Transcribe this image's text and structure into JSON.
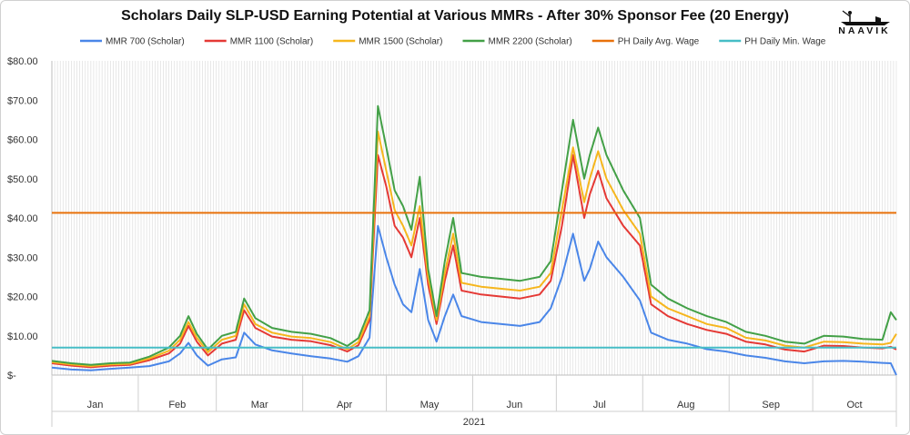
{
  "chart_data": {
    "type": "line",
    "title": "Scholars Daily SLP-USD Earning Potential at Various MMRs - After 30% Sponsor Fee (20 Energy)",
    "xlabel": "2021",
    "ylabel": "",
    "ylim": [
      0,
      80
    ],
    "y_ticks": [
      {
        "value": 0,
        "label": "$-"
      },
      {
        "value": 10,
        "label": "$10.00"
      },
      {
        "value": 20,
        "label": "$20.00"
      },
      {
        "value": 30,
        "label": "$30.00"
      },
      {
        "value": 40,
        "label": "$40.00"
      },
      {
        "value": 50,
        "label": "$50.00"
      },
      {
        "value": 60,
        "label": "$60.00"
      },
      {
        "value": 70,
        "label": "$70.00"
      },
      {
        "value": 80,
        "label": "$80.00"
      }
    ],
    "months": [
      {
        "label": "Jan",
        "start": "2021-01-01",
        "end": "2021-01-31"
      },
      {
        "label": "Feb",
        "start": "2021-02-01",
        "end": "2021-02-28"
      },
      {
        "label": "Mar",
        "start": "2021-03-01",
        "end": "2021-03-31"
      },
      {
        "label": "Apr",
        "start": "2021-04-01",
        "end": "2021-04-30"
      },
      {
        "label": "May",
        "start": "2021-05-01",
        "end": "2021-05-31"
      },
      {
        "label": "Jun",
        "start": "2021-06-01",
        "end": "2021-06-30"
      },
      {
        "label": "Jul",
        "start": "2021-07-01",
        "end": "2021-07-31"
      },
      {
        "label": "Aug",
        "start": "2021-08-01",
        "end": "2021-08-31"
      },
      {
        "label": "Sep",
        "start": "2021-09-01",
        "end": "2021-09-30"
      },
      {
        "label": "Oct",
        "start": "2021-10-01",
        "end": "2021-10-31"
      }
    ],
    "x_range": [
      "2021-01-01",
      "2021-10-31"
    ],
    "grid": "vertical dense lines",
    "legend_placement": "top",
    "series": [
      {
        "name": "MMR 700 (Scholar)",
        "color": "#4a86e8",
        "points": [
          [
            "2021-01-01",
            1.9
          ],
          [
            "2021-01-08",
            1.4
          ],
          [
            "2021-01-15",
            1.2
          ],
          [
            "2021-01-22",
            1.6
          ],
          [
            "2021-01-29",
            1.9
          ],
          [
            "2021-02-05",
            2.3
          ],
          [
            "2021-02-12",
            3.5
          ],
          [
            "2021-02-16",
            5.5
          ],
          [
            "2021-02-19",
            8.2
          ],
          [
            "2021-02-22",
            5.0
          ],
          [
            "2021-02-26",
            2.4
          ],
          [
            "2021-03-03",
            4.0
          ],
          [
            "2021-03-08",
            4.5
          ],
          [
            "2021-03-11",
            10.8
          ],
          [
            "2021-03-15",
            7.8
          ],
          [
            "2021-03-21",
            6.3
          ],
          [
            "2021-03-28",
            5.5
          ],
          [
            "2021-04-04",
            4.8
          ],
          [
            "2021-04-11",
            4.2
          ],
          [
            "2021-04-17",
            3.4
          ],
          [
            "2021-04-21",
            4.8
          ],
          [
            "2021-04-25",
            9.5
          ],
          [
            "2021-04-28",
            38.0
          ],
          [
            "2021-05-01",
            30.0
          ],
          [
            "2021-05-04",
            23.0
          ],
          [
            "2021-05-07",
            18.0
          ],
          [
            "2021-05-10",
            16.0
          ],
          [
            "2021-05-13",
            27.0
          ],
          [
            "2021-05-16",
            14.0
          ],
          [
            "2021-05-19",
            8.5
          ],
          [
            "2021-05-22",
            15.0
          ],
          [
            "2021-05-25",
            20.5
          ],
          [
            "2021-05-28",
            15.0
          ],
          [
            "2021-06-04",
            13.5
          ],
          [
            "2021-06-11",
            13.0
          ],
          [
            "2021-06-18",
            12.5
          ],
          [
            "2021-06-25",
            13.5
          ],
          [
            "2021-06-29",
            17.0
          ],
          [
            "2021-07-03",
            25.0
          ],
          [
            "2021-07-07",
            36.0
          ],
          [
            "2021-07-11",
            24.0
          ],
          [
            "2021-07-13",
            27.0
          ],
          [
            "2021-07-16",
            34.0
          ],
          [
            "2021-07-19",
            30.0
          ],
          [
            "2021-07-25",
            25.0
          ],
          [
            "2021-07-31",
            19.0
          ],
          [
            "2021-08-04",
            10.8
          ],
          [
            "2021-08-10",
            9.0
          ],
          [
            "2021-08-17",
            8.0
          ],
          [
            "2021-08-24",
            6.6
          ],
          [
            "2021-08-31",
            6.0
          ],
          [
            "2021-09-07",
            5.0
          ],
          [
            "2021-09-14",
            4.4
          ],
          [
            "2021-09-21",
            3.5
          ],
          [
            "2021-09-28",
            3.0
          ],
          [
            "2021-10-05",
            3.5
          ],
          [
            "2021-10-12",
            3.6
          ],
          [
            "2021-10-19",
            3.4
          ],
          [
            "2021-10-26",
            3.1
          ],
          [
            "2021-10-29",
            3.0
          ],
          [
            "2021-10-31",
            0.0
          ]
        ]
      },
      {
        "name": "MMR 1100 (Scholar)",
        "color": "#e53935",
        "points": [
          [
            "2021-01-01",
            3.0
          ],
          [
            "2021-01-08",
            2.4
          ],
          [
            "2021-01-15",
            2.0
          ],
          [
            "2021-01-22",
            2.4
          ],
          [
            "2021-01-29",
            2.6
          ],
          [
            "2021-02-05",
            3.8
          ],
          [
            "2021-02-12",
            5.5
          ],
          [
            "2021-02-16",
            8.0
          ],
          [
            "2021-02-19",
            12.5
          ],
          [
            "2021-02-22",
            8.5
          ],
          [
            "2021-02-26",
            5.0
          ],
          [
            "2021-03-03",
            8.0
          ],
          [
            "2021-03-08",
            9.0
          ],
          [
            "2021-03-11",
            16.5
          ],
          [
            "2021-03-15",
            12.0
          ],
          [
            "2021-03-21",
            9.8
          ],
          [
            "2021-03-28",
            9.0
          ],
          [
            "2021-04-04",
            8.6
          ],
          [
            "2021-04-11",
            7.6
          ],
          [
            "2021-04-17",
            6.0
          ],
          [
            "2021-04-21",
            7.6
          ],
          [
            "2021-04-25",
            14.0
          ],
          [
            "2021-04-28",
            56.0
          ],
          [
            "2021-05-01",
            48.0
          ],
          [
            "2021-05-04",
            38.0
          ],
          [
            "2021-05-07",
            35.0
          ],
          [
            "2021-05-10",
            30.0
          ],
          [
            "2021-05-13",
            40.0
          ],
          [
            "2021-05-16",
            23.0
          ],
          [
            "2021-05-19",
            13.0
          ],
          [
            "2021-05-22",
            24.0
          ],
          [
            "2021-05-25",
            33.0
          ],
          [
            "2021-05-28",
            21.5
          ],
          [
            "2021-06-04",
            20.5
          ],
          [
            "2021-06-11",
            20.0
          ],
          [
            "2021-06-18",
            19.5
          ],
          [
            "2021-06-25",
            20.5
          ],
          [
            "2021-06-29",
            24.0
          ],
          [
            "2021-07-03",
            38.0
          ],
          [
            "2021-07-07",
            56.0
          ],
          [
            "2021-07-11",
            40.0
          ],
          [
            "2021-07-13",
            46.0
          ],
          [
            "2021-07-16",
            52.0
          ],
          [
            "2021-07-19",
            45.0
          ],
          [
            "2021-07-25",
            38.0
          ],
          [
            "2021-07-31",
            33.0
          ],
          [
            "2021-08-04",
            18.0
          ],
          [
            "2021-08-10",
            15.0
          ],
          [
            "2021-08-17",
            13.0
          ],
          [
            "2021-08-24",
            11.5
          ],
          [
            "2021-08-31",
            10.5
          ],
          [
            "2021-09-07",
            8.5
          ],
          [
            "2021-09-14",
            7.8
          ],
          [
            "2021-09-21",
            6.5
          ],
          [
            "2021-09-28",
            6.0
          ],
          [
            "2021-10-05",
            7.5
          ],
          [
            "2021-10-12",
            7.4
          ],
          [
            "2021-10-19",
            7.0
          ],
          [
            "2021-10-26",
            6.8
          ],
          [
            "2021-10-29",
            7.2
          ],
          [
            "2021-10-31",
            6.5
          ]
        ]
      },
      {
        "name": "MMR 1500 (Scholar)",
        "color": "#f6b61d",
        "points": [
          [
            "2021-01-01",
            3.3
          ],
          [
            "2021-01-08",
            2.7
          ],
          [
            "2021-01-15",
            2.3
          ],
          [
            "2021-01-22",
            2.7
          ],
          [
            "2021-01-29",
            2.9
          ],
          [
            "2021-02-05",
            4.2
          ],
          [
            "2021-02-12",
            6.2
          ],
          [
            "2021-02-16",
            9.0
          ],
          [
            "2021-02-19",
            13.5
          ],
          [
            "2021-02-22",
            9.5
          ],
          [
            "2021-02-26",
            5.8
          ],
          [
            "2021-03-03",
            9.0
          ],
          [
            "2021-03-08",
            10.0
          ],
          [
            "2021-03-11",
            18.0
          ],
          [
            "2021-03-15",
            13.0
          ],
          [
            "2021-03-21",
            10.8
          ],
          [
            "2021-03-28",
            9.8
          ],
          [
            "2021-04-04",
            9.4
          ],
          [
            "2021-04-11",
            8.4
          ],
          [
            "2021-04-17",
            6.6
          ],
          [
            "2021-04-21",
            8.4
          ],
          [
            "2021-04-25",
            15.0
          ],
          [
            "2021-04-28",
            62.0
          ],
          [
            "2021-05-01",
            52.0
          ],
          [
            "2021-05-04",
            42.0
          ],
          [
            "2021-05-07",
            38.0
          ],
          [
            "2021-05-10",
            33.0
          ],
          [
            "2021-05-13",
            43.0
          ],
          [
            "2021-05-16",
            25.0
          ],
          [
            "2021-05-19",
            14.0
          ],
          [
            "2021-05-22",
            26.0
          ],
          [
            "2021-05-25",
            36.0
          ],
          [
            "2021-05-28",
            23.5
          ],
          [
            "2021-06-04",
            22.5
          ],
          [
            "2021-06-11",
            22.0
          ],
          [
            "2021-06-18",
            21.5
          ],
          [
            "2021-06-25",
            22.5
          ],
          [
            "2021-06-29",
            26.0
          ],
          [
            "2021-07-03",
            42.0
          ],
          [
            "2021-07-07",
            58.0
          ],
          [
            "2021-07-11",
            44.0
          ],
          [
            "2021-07-13",
            50.0
          ],
          [
            "2021-07-16",
            57.0
          ],
          [
            "2021-07-19",
            50.0
          ],
          [
            "2021-07-25",
            42.0
          ],
          [
            "2021-07-31",
            36.0
          ],
          [
            "2021-08-04",
            20.0
          ],
          [
            "2021-08-10",
            17.0
          ],
          [
            "2021-08-17",
            15.0
          ],
          [
            "2021-08-24",
            13.0
          ],
          [
            "2021-08-31",
            12.0
          ],
          [
            "2021-09-07",
            9.5
          ],
          [
            "2021-09-14",
            8.8
          ],
          [
            "2021-09-21",
            7.5
          ],
          [
            "2021-09-28",
            7.0
          ],
          [
            "2021-10-05",
            8.5
          ],
          [
            "2021-10-12",
            8.4
          ],
          [
            "2021-10-19",
            8.0
          ],
          [
            "2021-10-26",
            7.8
          ],
          [
            "2021-10-29",
            8.2
          ],
          [
            "2021-10-31",
            10.5
          ]
        ]
      },
      {
        "name": "MMR 2200 (Scholar)",
        "color": "#43a047",
        "points": [
          [
            "2021-01-01",
            3.6
          ],
          [
            "2021-01-08",
            3.0
          ],
          [
            "2021-01-15",
            2.6
          ],
          [
            "2021-01-22",
            3.0
          ],
          [
            "2021-01-29",
            3.2
          ],
          [
            "2021-02-05",
            4.7
          ],
          [
            "2021-02-12",
            7.0
          ],
          [
            "2021-02-16",
            10.0
          ],
          [
            "2021-02-19",
            15.0
          ],
          [
            "2021-02-22",
            10.5
          ],
          [
            "2021-02-26",
            6.5
          ],
          [
            "2021-03-03",
            10.0
          ],
          [
            "2021-03-08",
            11.0
          ],
          [
            "2021-03-11",
            19.5
          ],
          [
            "2021-03-15",
            14.5
          ],
          [
            "2021-03-21",
            12.0
          ],
          [
            "2021-03-28",
            11.0
          ],
          [
            "2021-04-04",
            10.5
          ],
          [
            "2021-04-11",
            9.4
          ],
          [
            "2021-04-17",
            7.4
          ],
          [
            "2021-04-21",
            9.4
          ],
          [
            "2021-04-25",
            16.5
          ],
          [
            "2021-04-28",
            68.5
          ],
          [
            "2021-05-01",
            58.0
          ],
          [
            "2021-05-04",
            47.0
          ],
          [
            "2021-05-07",
            43.0
          ],
          [
            "2021-05-10",
            37.0
          ],
          [
            "2021-05-13",
            50.5
          ],
          [
            "2021-05-16",
            27.0
          ],
          [
            "2021-05-19",
            15.0
          ],
          [
            "2021-05-22",
            29.0
          ],
          [
            "2021-05-25",
            40.0
          ],
          [
            "2021-05-28",
            26.0
          ],
          [
            "2021-06-04",
            25.0
          ],
          [
            "2021-06-11",
            24.5
          ],
          [
            "2021-06-18",
            24.0
          ],
          [
            "2021-06-25",
            25.0
          ],
          [
            "2021-06-29",
            29.0
          ],
          [
            "2021-07-03",
            47.0
          ],
          [
            "2021-07-07",
            65.0
          ],
          [
            "2021-07-11",
            50.0
          ],
          [
            "2021-07-13",
            56.0
          ],
          [
            "2021-07-16",
            63.0
          ],
          [
            "2021-07-19",
            56.0
          ],
          [
            "2021-07-25",
            47.0
          ],
          [
            "2021-07-31",
            40.0
          ],
          [
            "2021-08-04",
            23.0
          ],
          [
            "2021-08-10",
            19.5
          ],
          [
            "2021-08-17",
            17.0
          ],
          [
            "2021-08-24",
            15.0
          ],
          [
            "2021-08-31",
            13.5
          ],
          [
            "2021-09-07",
            11.0
          ],
          [
            "2021-09-14",
            10.0
          ],
          [
            "2021-09-21",
            8.5
          ],
          [
            "2021-09-28",
            8.0
          ],
          [
            "2021-10-05",
            10.0
          ],
          [
            "2021-10-12",
            9.8
          ],
          [
            "2021-10-19",
            9.2
          ],
          [
            "2021-10-26",
            9.0
          ],
          [
            "2021-10-29",
            16.0
          ],
          [
            "2021-10-31",
            14.0
          ]
        ]
      },
      {
        "name": "PH Daily Avg. Wage",
        "color": "#e8710a",
        "points": [
          [
            "2021-01-01",
            41.3
          ],
          [
            "2021-10-31",
            41.3
          ]
        ]
      },
      {
        "name": "PH Daily Min. Wage",
        "color": "#46bdc6",
        "points": [
          [
            "2021-01-01",
            7.0
          ],
          [
            "2021-10-31",
            7.0
          ]
        ]
      }
    ]
  },
  "brand": {
    "logo_text": "NAAVIK"
  }
}
